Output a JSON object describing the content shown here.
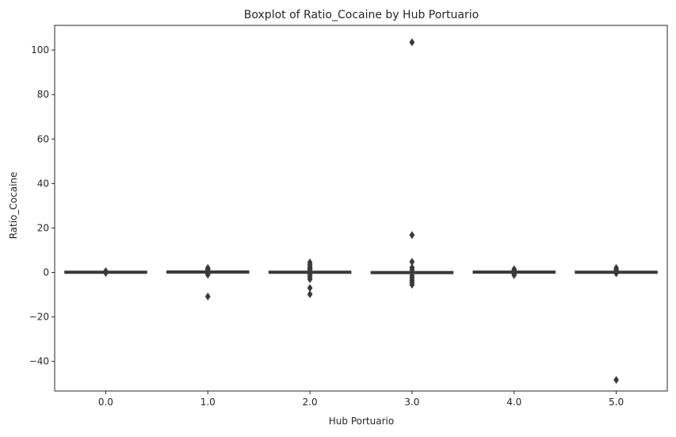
{
  "chart_data": {
    "type": "boxplot",
    "title": "Boxplot of Ratio_Cocaine by Hub Portuario",
    "xlabel": "Hub Portuario",
    "ylabel": "Ratio_Cocaine",
    "categories": [
      "0.0",
      "1.0",
      "2.0",
      "3.0",
      "4.0",
      "5.0"
    ],
    "ylim": [
      -53.3,
      111.1
    ],
    "yticks": [
      -40,
      -20,
      0,
      20,
      40,
      60,
      80,
      100
    ],
    "ytick_labels": [
      "−40",
      "−20",
      "0",
      "20",
      "40",
      "60",
      "80",
      "100"
    ],
    "grid": false,
    "box_color": "#3a3a3a",
    "outlier_color": "#3a3a3a",
    "boxes": [
      {
        "category": "0.0",
        "q1": 0.0,
        "median": 0.1,
        "q3": 0.2,
        "whisker_low": 0.0,
        "whisker_high": 0.3,
        "outliers": [
          0.6,
          -0.2
        ]
      },
      {
        "category": "1.0",
        "q1": 0.0,
        "median": 0.1,
        "q3": 0.4,
        "whisker_low": -0.3,
        "whisker_high": 0.8,
        "outliers": [
          2.0,
          1.5,
          1.0,
          -0.5,
          -1.0,
          -10.8
        ]
      },
      {
        "category": "2.0",
        "q1": -0.2,
        "median": 0.1,
        "q3": 0.4,
        "whisker_low": -0.5,
        "whisker_high": 0.8,
        "outliers": [
          4.5,
          3.5,
          2.5,
          1.8,
          1.2,
          -1.0,
          -2.0,
          -3.0,
          -7.0,
          -9.8
        ]
      },
      {
        "category": "3.0",
        "q1": -0.3,
        "median": 0.0,
        "q3": 0.2,
        "whisker_low": -0.6,
        "whisker_high": 0.5,
        "outliers": [
          103.5,
          16.8,
          4.8,
          2.2,
          1.2,
          -1.5,
          -2.5,
          -3.5,
          -4.5,
          -5.5
        ]
      },
      {
        "category": "4.0",
        "q1": 0.0,
        "median": 0.1,
        "q3": 0.3,
        "whisker_low": -0.2,
        "whisker_high": 0.5,
        "outliers": [
          1.5,
          0.9,
          -0.6,
          -1.2
        ]
      },
      {
        "category": "5.0",
        "q1": 0.0,
        "median": 0.1,
        "q3": 0.2,
        "whisker_low": -0.1,
        "whisker_high": 0.3,
        "outliers": [
          2.0,
          1.2,
          -0.4,
          -48.3
        ]
      }
    ]
  }
}
